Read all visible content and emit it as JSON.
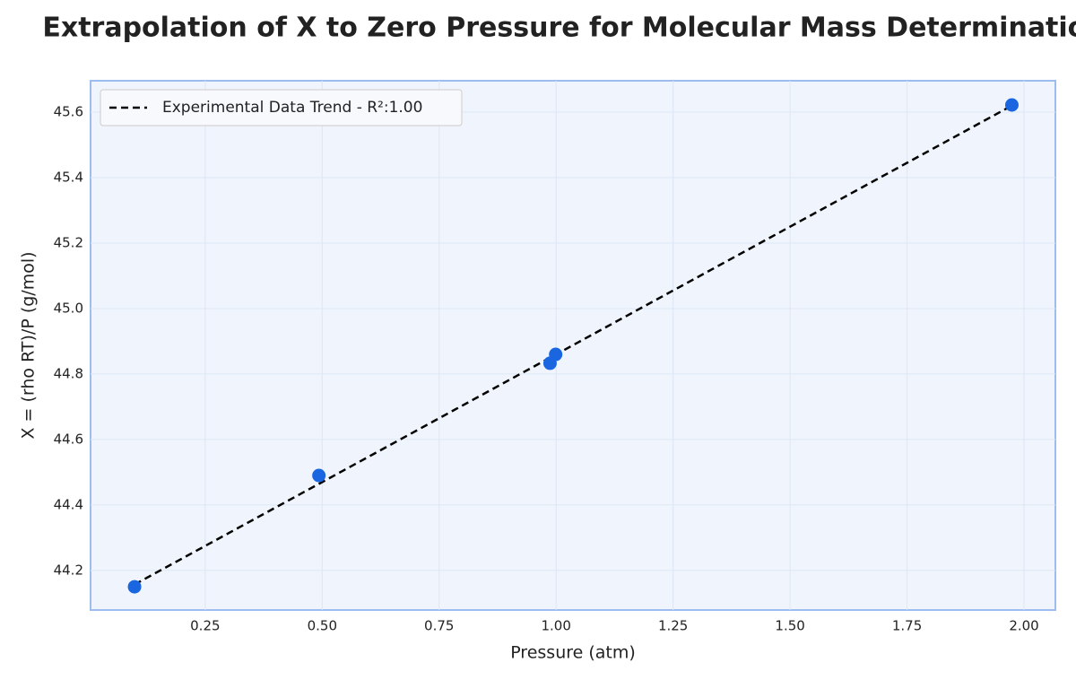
{
  "chart_data": {
    "type": "scatter",
    "title": "Extrapolation of X to Zero Pressure for Molecular Mass Determination",
    "x_label": "Pressure (atm)",
    "y_label": "X = (rho RT)/P (g/mol)",
    "xlim": [
      0.005,
      2.067
    ],
    "ylim": [
      44.079,
      45.696
    ],
    "xticks": [
      0.25,
      {
        "value": 0.5,
        "label": "0.50"
      },
      0.75,
      {
        "value": 1,
        "label": "1.00"
      },
      1.25,
      {
        "value": 1.5,
        "label": "1.50"
      },
      1.75,
      {
        "value": 2,
        "label": "2.00"
      }
    ],
    "yticks": [
      44.2,
      44.4,
      44.6,
      44.8,
      {
        "value": 45,
        "label": "45.0"
      },
      45.2,
      45.4,
      45.6
    ],
    "grid": true,
    "legend": "upper left",
    "points": {
      "color": "#1a66e0",
      "x": [
        0.099,
        0.493,
        0.987,
        0.999,
        1.974
      ],
      "values": [
        44.15,
        44.49,
        44.833,
        44.86,
        45.622
      ]
    },
    "series": [
      {
        "name": "Experimental Data Trend - R²:1.00",
        "color": "#000000",
        "x": [
          0.099,
          1.974
        ],
        "values": [
          44.157,
          45.62
        ]
      }
    ]
  }
}
